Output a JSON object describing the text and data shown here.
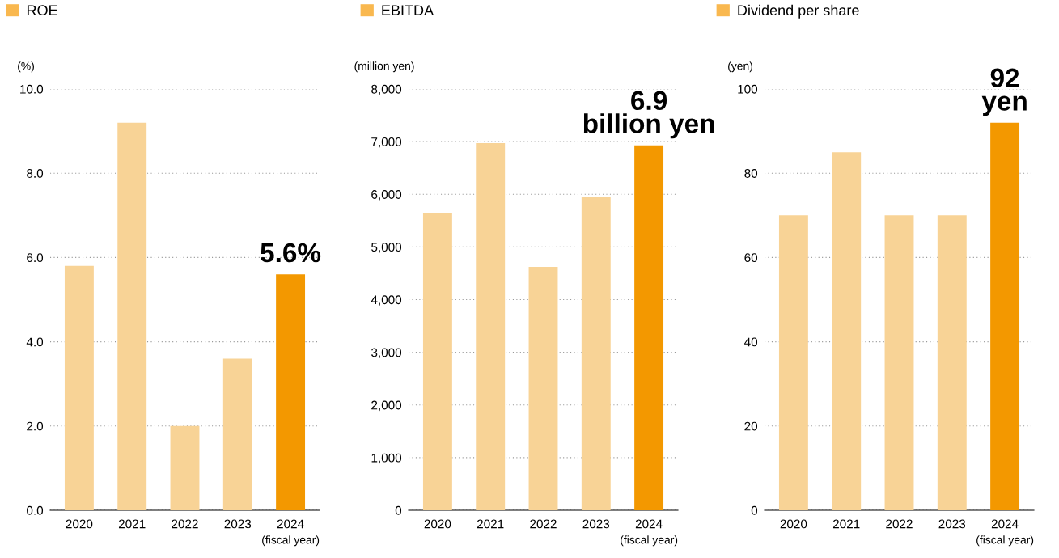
{
  "chart_data": [
    {
      "type": "bar",
      "ylabel": "(%)",
      "categories": [
        "2020",
        "2021",
        "2022",
        "2023",
        "2024"
      ],
      "series": [
        {
          "name": "ROE",
          "color": "#f9b84f",
          "colors": [
            "#f8d396",
            "#f8d396",
            "#f8d396",
            "#f8d396",
            "#f39800"
          ],
          "values": [
            5.8,
            9.2,
            2.0,
            3.6,
            5.6
          ]
        }
      ],
      "ylim": [
        0,
        10
      ],
      "yticks": [
        {
          "value": 0,
          "label": "0.0"
        },
        {
          "value": 2,
          "label": "2.0"
        },
        {
          "value": 4,
          "label": "4.0"
        },
        {
          "value": 6,
          "label": "6.0"
        },
        {
          "value": 8,
          "label": "8.0"
        },
        {
          "value": 10,
          "label": "10.0"
        }
      ],
      "grid": "y",
      "legend": "top left",
      "annotations": [
        {
          "text": "5.6%",
          "x": "2024",
          "y": 5.6
        },
        "(fiscal year)"
      ]
    },
    {
      "type": "bar",
      "ylabel": "(million yen)",
      "categories": [
        "2020",
        "2021",
        "2022",
        "2023",
        "2024"
      ],
      "series": [
        {
          "name": "EBITDA",
          "color": "#f9b84f",
          "colors": [
            "#f8d396",
            "#f8d396",
            "#f8d396",
            "#f8d396",
            "#f39800"
          ],
          "values": [
            5650,
            6970,
            4620,
            5950,
            6930
          ]
        }
      ],
      "ylim": [
        0,
        8000
      ],
      "yticks": [
        {
          "value": 0,
          "label": "0"
        },
        {
          "value": 1000,
          "label": "1,000"
        },
        {
          "value": 2000,
          "label": "2,000"
        },
        {
          "value": 3000,
          "label": "3,000"
        },
        {
          "value": 4000,
          "label": "4,000"
        },
        {
          "value": 5000,
          "label": "5,000"
        },
        {
          "value": 6000,
          "label": "6,000"
        },
        {
          "value": 7000,
          "label": "7,000"
        },
        {
          "value": 8000,
          "label": "8,000"
        }
      ],
      "grid": "y",
      "legend": "top left",
      "annotations": [
        {
          "text": "6.9\nbillion yen",
          "x": "2024",
          "y": 6930
        },
        "(fiscal year)"
      ]
    },
    {
      "type": "bar",
      "ylabel": "(yen)",
      "categories": [
        "2020",
        "2021",
        "2022",
        "2023",
        "2024"
      ],
      "series": [
        {
          "name": "Dividend per share",
          "color": "#f9b84f",
          "colors": [
            "#f8d396",
            "#f8d396",
            "#f8d396",
            "#f8d396",
            "#f39800"
          ],
          "values": [
            70,
            85,
            70,
            70,
            92
          ]
        }
      ],
      "ylim": [
        0,
        100
      ],
      "yticks": [
        0,
        20,
        40,
        60,
        80,
        100
      ],
      "grid": "y",
      "legend": "top left",
      "annotations": [
        {
          "text": "92\nyen",
          "x": "2024",
          "y": 92
        },
        "(fiscal year)"
      ]
    }
  ]
}
